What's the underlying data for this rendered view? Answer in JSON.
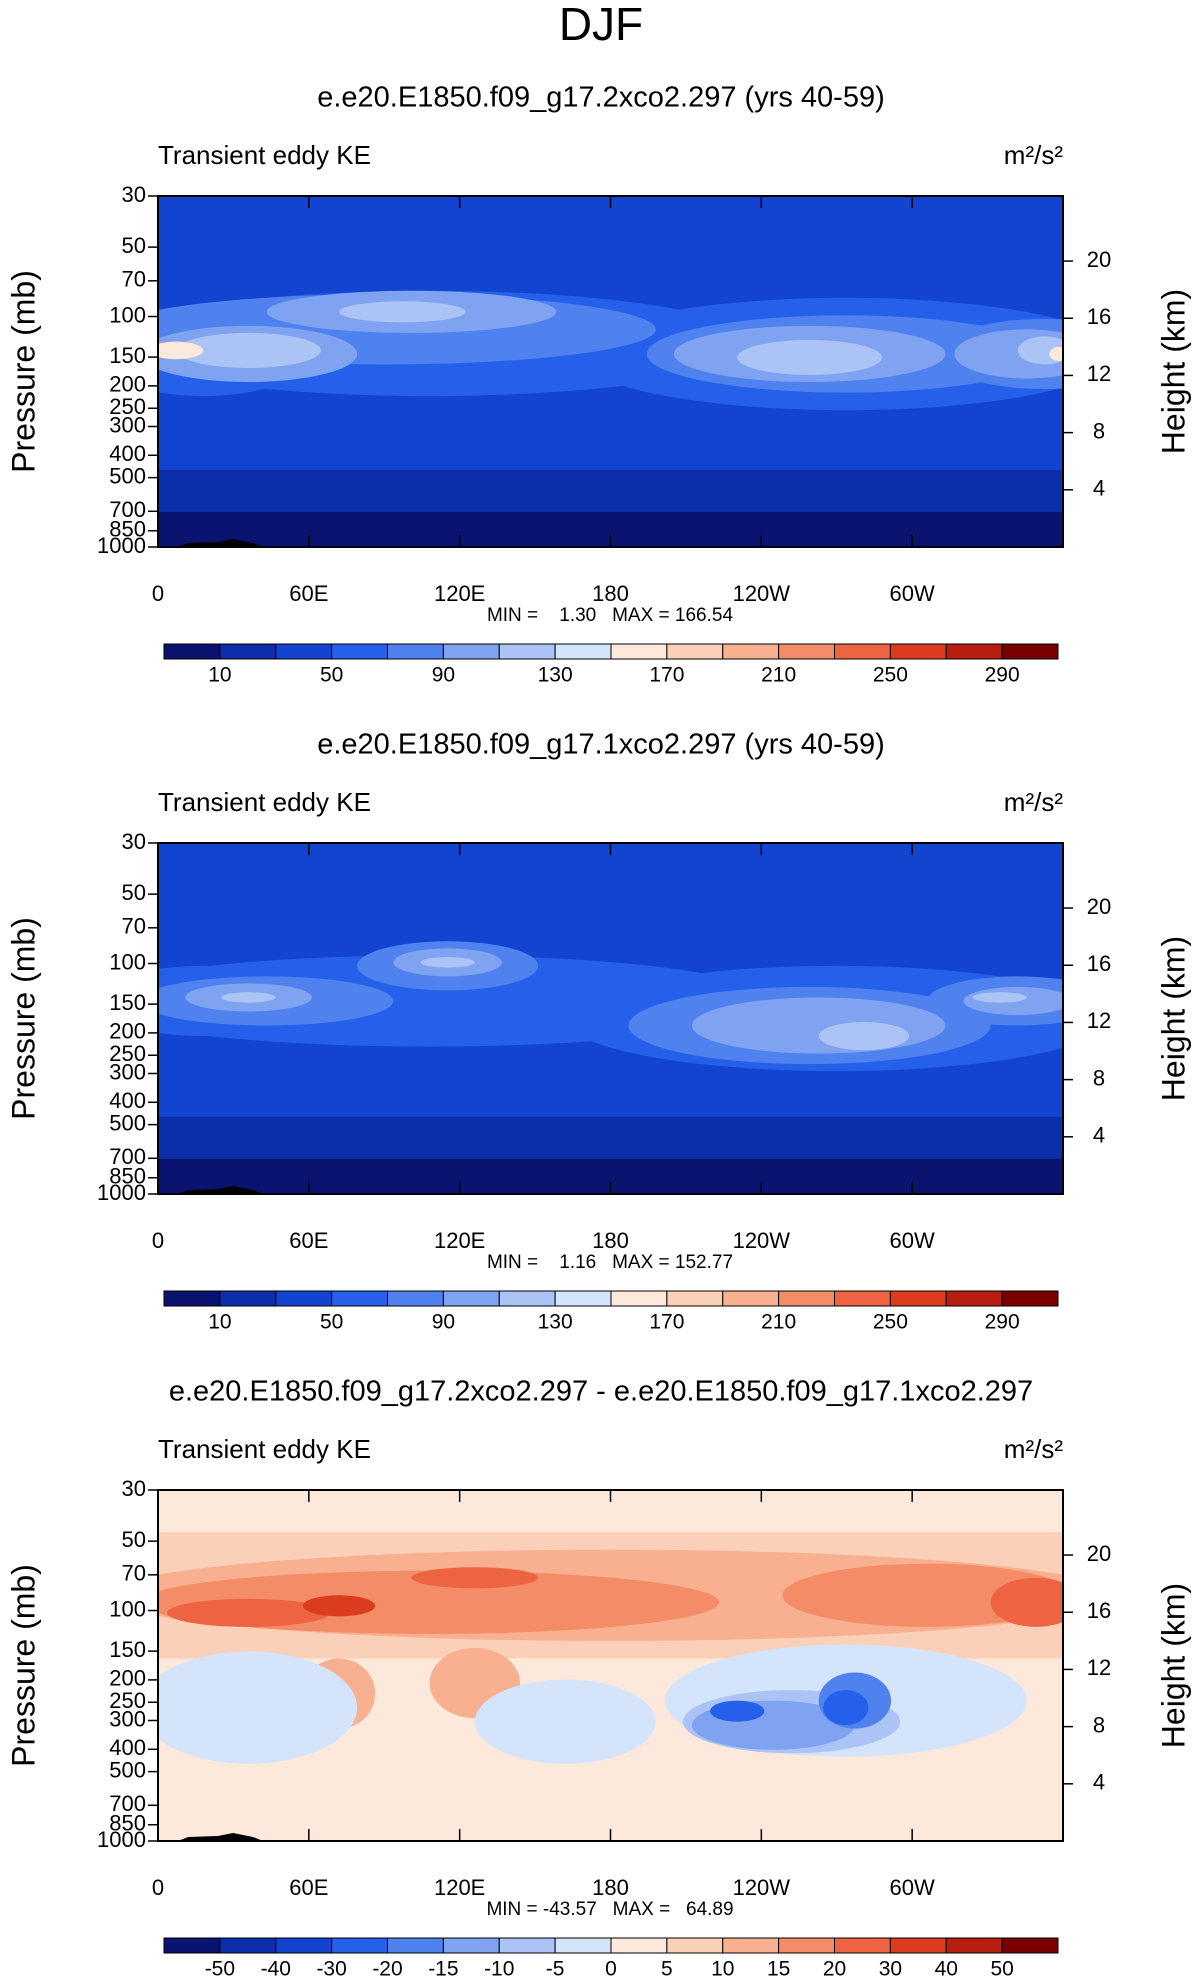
{
  "title": "DJF",
  "chart_data": [
    {
      "type": "contour",
      "title": "e.e20.E1850.f09_g17.2xco2.297 (yrs 40-59)",
      "left_label": "Transient eddy KE",
      "units": "m²/s²",
      "stats": "MIN =    1.30   MAX = 166.54",
      "xlim": [
        0,
        360
      ],
      "xticks": [
        0,
        {
          "value": 60,
          "label": "60E"
        },
        {
          "value": 120,
          "label": "120E"
        },
        180,
        {
          "value": 240,
          "label": "120W"
        },
        {
          "value": 300,
          "label": "60W"
        }
      ],
      "ylabel": "Pressure (mb)",
      "ylim": [
        1000,
        30
      ],
      "log_y": true,
      "yticks": [
        30,
        50,
        70,
        100,
        150,
        200,
        250,
        300,
        400,
        500,
        700,
        850,
        1000
      ],
      "y2label": "Height (km)",
      "y2lim": [
        0,
        24.55
      ],
      "y2ticks": [
        4,
        8,
        12,
        16,
        20
      ],
      "colorbar": {
        "levels": [
          10,
          30,
          50,
          70,
          90,
          110,
          130,
          150,
          170,
          190,
          210,
          230,
          250,
          270,
          290
        ],
        "ticks": [
          10,
          50,
          90,
          130,
          170,
          210,
          250,
          290
        ],
        "colors": [
          "#0a1470",
          "#0c2ea8",
          "#1244d0",
          "#2560ea",
          "#4f82ef",
          "#7fa3f1",
          "#abc4f5",
          "#d4e4fa",
          "#fde9dc",
          "#fbd0b8",
          "#f8b090",
          "#f48c68",
          "#ee6440",
          "#dc3c1e",
          "#b81e10",
          "#7a0000"
        ]
      }
    },
    {
      "type": "contour",
      "title": "e.e20.E1850.f09_g17.1xco2.297 (yrs 40-59)",
      "left_label": "Transient eddy KE",
      "units": "m²/s²",
      "stats": "MIN =    1.16   MAX = 152.77",
      "xlim": [
        0,
        360
      ],
      "xticks": [
        0,
        {
          "value": 60,
          "label": "60E"
        },
        {
          "value": 120,
          "label": "120E"
        },
        180,
        {
          "value": 240,
          "label": "120W"
        },
        {
          "value": 300,
          "label": "60W"
        }
      ],
      "ylabel": "Pressure (mb)",
      "ylim": [
        1000,
        30
      ],
      "log_y": true,
      "yticks": [
        30,
        50,
        70,
        100,
        150,
        200,
        250,
        300,
        400,
        500,
        700,
        850,
        1000
      ],
      "y2label": "Height (km)",
      "y2lim": [
        0,
        24.55
      ],
      "y2ticks": [
        4,
        8,
        12,
        16,
        20
      ],
      "colorbar": {
        "levels": [
          10,
          30,
          50,
          70,
          90,
          110,
          130,
          150,
          170,
          190,
          210,
          230,
          250,
          270,
          290
        ],
        "ticks": [
          10,
          50,
          90,
          130,
          170,
          210,
          250,
          290
        ],
        "colors": [
          "#0a1470",
          "#0c2ea8",
          "#1244d0",
          "#2560ea",
          "#4f82ef",
          "#7fa3f1",
          "#abc4f5",
          "#d4e4fa",
          "#fde9dc",
          "#fbd0b8",
          "#f8b090",
          "#f48c68",
          "#ee6440",
          "#dc3c1e",
          "#b81e10",
          "#7a0000"
        ]
      }
    },
    {
      "type": "contour",
      "title": "e.e20.E1850.f09_g17.2xco2.297 - e.e20.E1850.f09_g17.1xco2.297",
      "left_label": "Transient eddy KE",
      "units": "m²/s²",
      "stats": "MIN = -43.57   MAX =   64.89",
      "xlim": [
        0,
        360
      ],
      "xticks": [
        0,
        {
          "value": 60,
          "label": "60E"
        },
        {
          "value": 120,
          "label": "120E"
        },
        180,
        {
          "value": 240,
          "label": "120W"
        },
        {
          "value": 300,
          "label": "60W"
        }
      ],
      "ylabel": "Pressure (mb)",
      "ylim": [
        1000,
        30
      ],
      "log_y": true,
      "yticks": [
        30,
        50,
        70,
        100,
        150,
        200,
        250,
        300,
        400,
        500,
        700,
        850,
        1000
      ],
      "y2label": "Height (km)",
      "y2lim": [
        0,
        24.55
      ],
      "y2ticks": [
        4,
        8,
        12,
        16,
        20
      ],
      "colorbar": {
        "levels": [
          -50,
          -40,
          -30,
          -20,
          -15,
          -10,
          -5,
          0,
          5,
          10,
          15,
          20,
          30,
          40,
          50
        ],
        "ticks": [
          -50,
          -40,
          -30,
          -20,
          -15,
          -10,
          -5,
          0,
          5,
          10,
          15,
          20,
          30,
          40,
          50
        ],
        "colors": [
          "#0a1470",
          "#0c2ea8",
          "#1244d0",
          "#2560ea",
          "#4f82ef",
          "#7fa3f1",
          "#abc4f5",
          "#d4e4fa",
          "#fde9dc",
          "#fbd0b8",
          "#f8b090",
          "#f48c68",
          "#ee6440",
          "#dc3c1e",
          "#b81e10",
          "#7a0000"
        ]
      }
    }
  ]
}
